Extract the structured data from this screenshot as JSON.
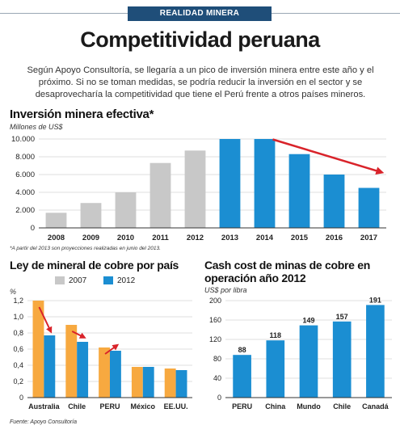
{
  "header": {
    "banner": "REALIDAD MINERA",
    "title": "Competitividad peruana"
  },
  "intro": "Según Apoyo Consultoría, se llegaría a un pico de inversión minera entre este año y el próximo. Si no se toman medidas, se podría reducir la inversión en el sector y se desaprovecharía la competitividad que tiene el Perú frente a otros países mineros.",
  "colors": {
    "gray": "#c8c8c8",
    "blue": "#1b8ed2",
    "orange": "#f7a940",
    "arrow": "#d9232a",
    "banner": "#1f4e79"
  },
  "chart_data": [
    {
      "type": "bar",
      "title": "Inversión minera efectiva*",
      "ylabel": "Millones de US$",
      "categories": [
        "2008",
        "2009",
        "2010",
        "2011",
        "2012",
        "2013",
        "2014",
        "2015",
        "2016",
        "2017"
      ],
      "values": [
        1700,
        2800,
        4000,
        7300,
        8700,
        10000,
        10000,
        8300,
        6000,
        4500
      ],
      "projected": [
        false,
        false,
        false,
        false,
        false,
        true,
        true,
        true,
        true,
        true
      ],
      "yticks": [
        "0",
        "2.000",
        "4.000",
        "6.000",
        "8.000",
        "10.000"
      ],
      "ylim": [
        0,
        10000
      ],
      "note": "*A partir del 2013 son proyecciones realizadas en junio del 2013."
    },
    {
      "type": "bar",
      "title": "Ley de mineral de cobre por país",
      "ylabel": "%",
      "categories": [
        "Australia",
        "Chile",
        "PERU",
        "México",
        "EE.UU."
      ],
      "series": [
        {
          "name": "2007",
          "values": [
            1.2,
            0.9,
            0.62,
            0.38,
            0.36
          ]
        },
        {
          "name": "2012",
          "values": [
            0.77,
            0.69,
            0.58,
            0.38,
            0.34
          ]
        }
      ],
      "yticks": [
        "0",
        "0,2",
        "0,4",
        "0,6",
        "0,8",
        "1,0",
        "1,2"
      ],
      "ylim": [
        0,
        1.2
      ],
      "source": "Fuente: Apoyo Consultoría"
    },
    {
      "type": "bar",
      "title": "Cash cost de minas de cobre en operación año 2012",
      "ylabel": "US$ por libra",
      "categories": [
        "PERU",
        "China",
        "Mundo",
        "Chile",
        "Canadá"
      ],
      "values": [
        88,
        118,
        149,
        157,
        191
      ],
      "labels": [
        "88",
        "118",
        "149",
        "157",
        "191"
      ],
      "yticks": [
        "0",
        "40",
        "80",
        "120",
        "160",
        "200"
      ],
      "ylim": [
        0,
        200
      ]
    }
  ]
}
